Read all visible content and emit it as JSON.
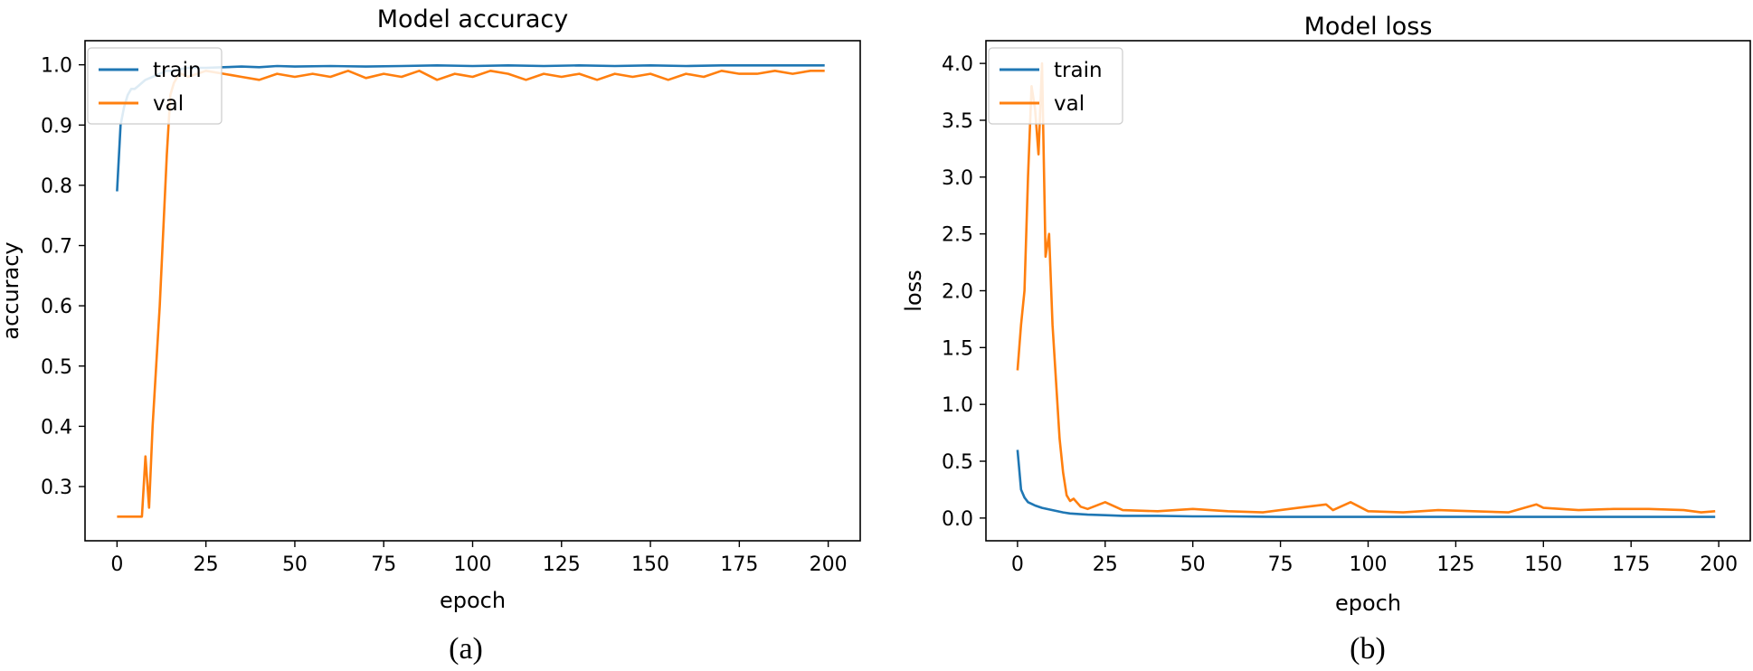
{
  "chart_data": [
    {
      "type": "line",
      "panel_label": "(a)",
      "title": "Model accuracy",
      "xlabel": "epoch",
      "ylabel": "accuracy",
      "xlim": [
        -9,
        209
      ],
      "ylim": [
        0.21,
        1.04
      ],
      "xticks": [
        0,
        25,
        50,
        75,
        100,
        125,
        150,
        175,
        200
      ],
      "yticks": [
        0.3,
        0.4,
        0.5,
        0.6,
        0.7,
        0.8,
        0.9,
        1.0
      ],
      "ytick_format": 1,
      "legend": "top-left",
      "grid": false,
      "series": [
        {
          "name": "train",
          "color": "#1f77b4",
          "x": [
            0,
            1,
            2,
            3,
            4,
            5,
            6,
            7,
            8,
            10,
            12,
            14,
            16,
            18,
            20,
            25,
            30,
            35,
            40,
            45,
            50,
            60,
            70,
            80,
            90,
            100,
            110,
            120,
            130,
            140,
            150,
            160,
            170,
            180,
            190,
            199
          ],
          "y": [
            0.79,
            0.9,
            0.93,
            0.95,
            0.96,
            0.96,
            0.965,
            0.97,
            0.975,
            0.98,
            0.985,
            0.99,
            0.99,
            0.993,
            0.995,
            0.995,
            0.996,
            0.997,
            0.996,
            0.998,
            0.997,
            0.998,
            0.997,
            0.998,
            0.999,
            0.998,
            0.999,
            0.998,
            0.999,
            0.998,
            0.999,
            0.998,
            0.999,
            0.999,
            0.999,
            0.999
          ]
        },
        {
          "name": "val",
          "color": "#ff7f0e",
          "x": [
            0,
            2,
            4,
            6,
            7,
            8,
            9,
            10,
            12,
            14,
            15,
            16,
            17,
            18,
            20,
            25,
            30,
            35,
            40,
            45,
            50,
            55,
            60,
            65,
            70,
            75,
            80,
            85,
            90,
            95,
            100,
            105,
            110,
            115,
            120,
            125,
            130,
            135,
            140,
            145,
            150,
            155,
            160,
            165,
            170,
            175,
            180,
            185,
            190,
            195,
            199
          ],
          "y": [
            0.25,
            0.25,
            0.25,
            0.25,
            0.25,
            0.35,
            0.265,
            0.4,
            0.6,
            0.85,
            0.95,
            0.97,
            0.98,
            0.985,
            0.98,
            0.99,
            0.985,
            0.98,
            0.975,
            0.985,
            0.98,
            0.985,
            0.98,
            0.99,
            0.978,
            0.985,
            0.98,
            0.99,
            0.975,
            0.985,
            0.98,
            0.99,
            0.985,
            0.975,
            0.985,
            0.98,
            0.985,
            0.975,
            0.985,
            0.98,
            0.985,
            0.975,
            0.985,
            0.98,
            0.99,
            0.985,
            0.985,
            0.99,
            0.985,
            0.99,
            0.99
          ]
        }
      ]
    },
    {
      "type": "line",
      "panel_label": "(b)",
      "title": "Model loss",
      "xlabel": "epoch",
      "ylabel": "loss",
      "xlim": [
        -9,
        209
      ],
      "ylim": [
        -0.2,
        4.2
      ],
      "xticks": [
        0,
        25,
        50,
        75,
        100,
        125,
        150,
        175,
        200
      ],
      "yticks": [
        0.0,
        0.5,
        1.0,
        1.5,
        2.0,
        2.5,
        3.0,
        3.5,
        4.0
      ],
      "ytick_format": 1,
      "legend": "top-left",
      "grid": false,
      "series": [
        {
          "name": "train",
          "color": "#1f77b4",
          "x": [
            0,
            1,
            2,
            3,
            5,
            7,
            10,
            13,
            15,
            20,
            25,
            30,
            40,
            50,
            60,
            75,
            100,
            125,
            150,
            175,
            199
          ],
          "y": [
            0.6,
            0.25,
            0.18,
            0.14,
            0.11,
            0.09,
            0.07,
            0.05,
            0.04,
            0.03,
            0.025,
            0.02,
            0.02,
            0.015,
            0.015,
            0.01,
            0.01,
            0.01,
            0.01,
            0.01,
            0.01
          ]
        },
        {
          "name": "val",
          "color": "#ff7f0e",
          "x": [
            0,
            1,
            2,
            3,
            4,
            5,
            6,
            7,
            8,
            9,
            10,
            11,
            12,
            13,
            14,
            15,
            16,
            18,
            20,
            25,
            30,
            40,
            50,
            60,
            70,
            80,
            88,
            90,
            95,
            100,
            110,
            120,
            130,
            140,
            148,
            150,
            160,
            170,
            180,
            190,
            195,
            199
          ],
          "y": [
            1.3,
            1.7,
            2.0,
            3.0,
            3.8,
            3.6,
            3.2,
            4.0,
            2.3,
            2.5,
            1.7,
            1.2,
            0.7,
            0.4,
            0.2,
            0.15,
            0.17,
            0.1,
            0.08,
            0.14,
            0.07,
            0.06,
            0.08,
            0.06,
            0.05,
            0.09,
            0.12,
            0.07,
            0.14,
            0.06,
            0.05,
            0.07,
            0.06,
            0.05,
            0.12,
            0.09,
            0.07,
            0.08,
            0.08,
            0.07,
            0.05,
            0.06
          ]
        }
      ]
    }
  ]
}
